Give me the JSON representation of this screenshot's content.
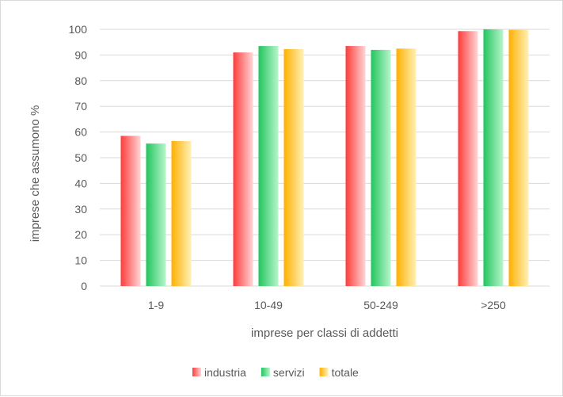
{
  "chart_data": {
    "type": "bar",
    "title": "",
    "xlabel": "imprese per classi di addetti",
    "ylabel": "imprese che assumono %",
    "categories": [
      "1-9",
      "10-49",
      "50-249",
      ">250"
    ],
    "series": [
      {
        "name": "industria",
        "values": [
          58.5,
          91.0,
          93.5,
          99.3
        ],
        "color": "#ff3b3b",
        "color_light": "#ffd6d6"
      },
      {
        "name": "servizi",
        "values": [
          55.5,
          93.5,
          92.0,
          100.0
        ],
        "color": "#22c55e",
        "color_light": "#b8f5cc"
      },
      {
        "name": "totale",
        "values": [
          56.5,
          92.3,
          92.5,
          99.8
        ],
        "color": "#ffb000",
        "color_light": "#fff1b8"
      }
    ],
    "ylim": [
      0,
      100
    ],
    "yticks": [
      0,
      10,
      20,
      30,
      40,
      50,
      60,
      70,
      80,
      90,
      100
    ],
    "grid": true,
    "legend_position": "bottom",
    "grid_color": "#d9d9d9"
  }
}
